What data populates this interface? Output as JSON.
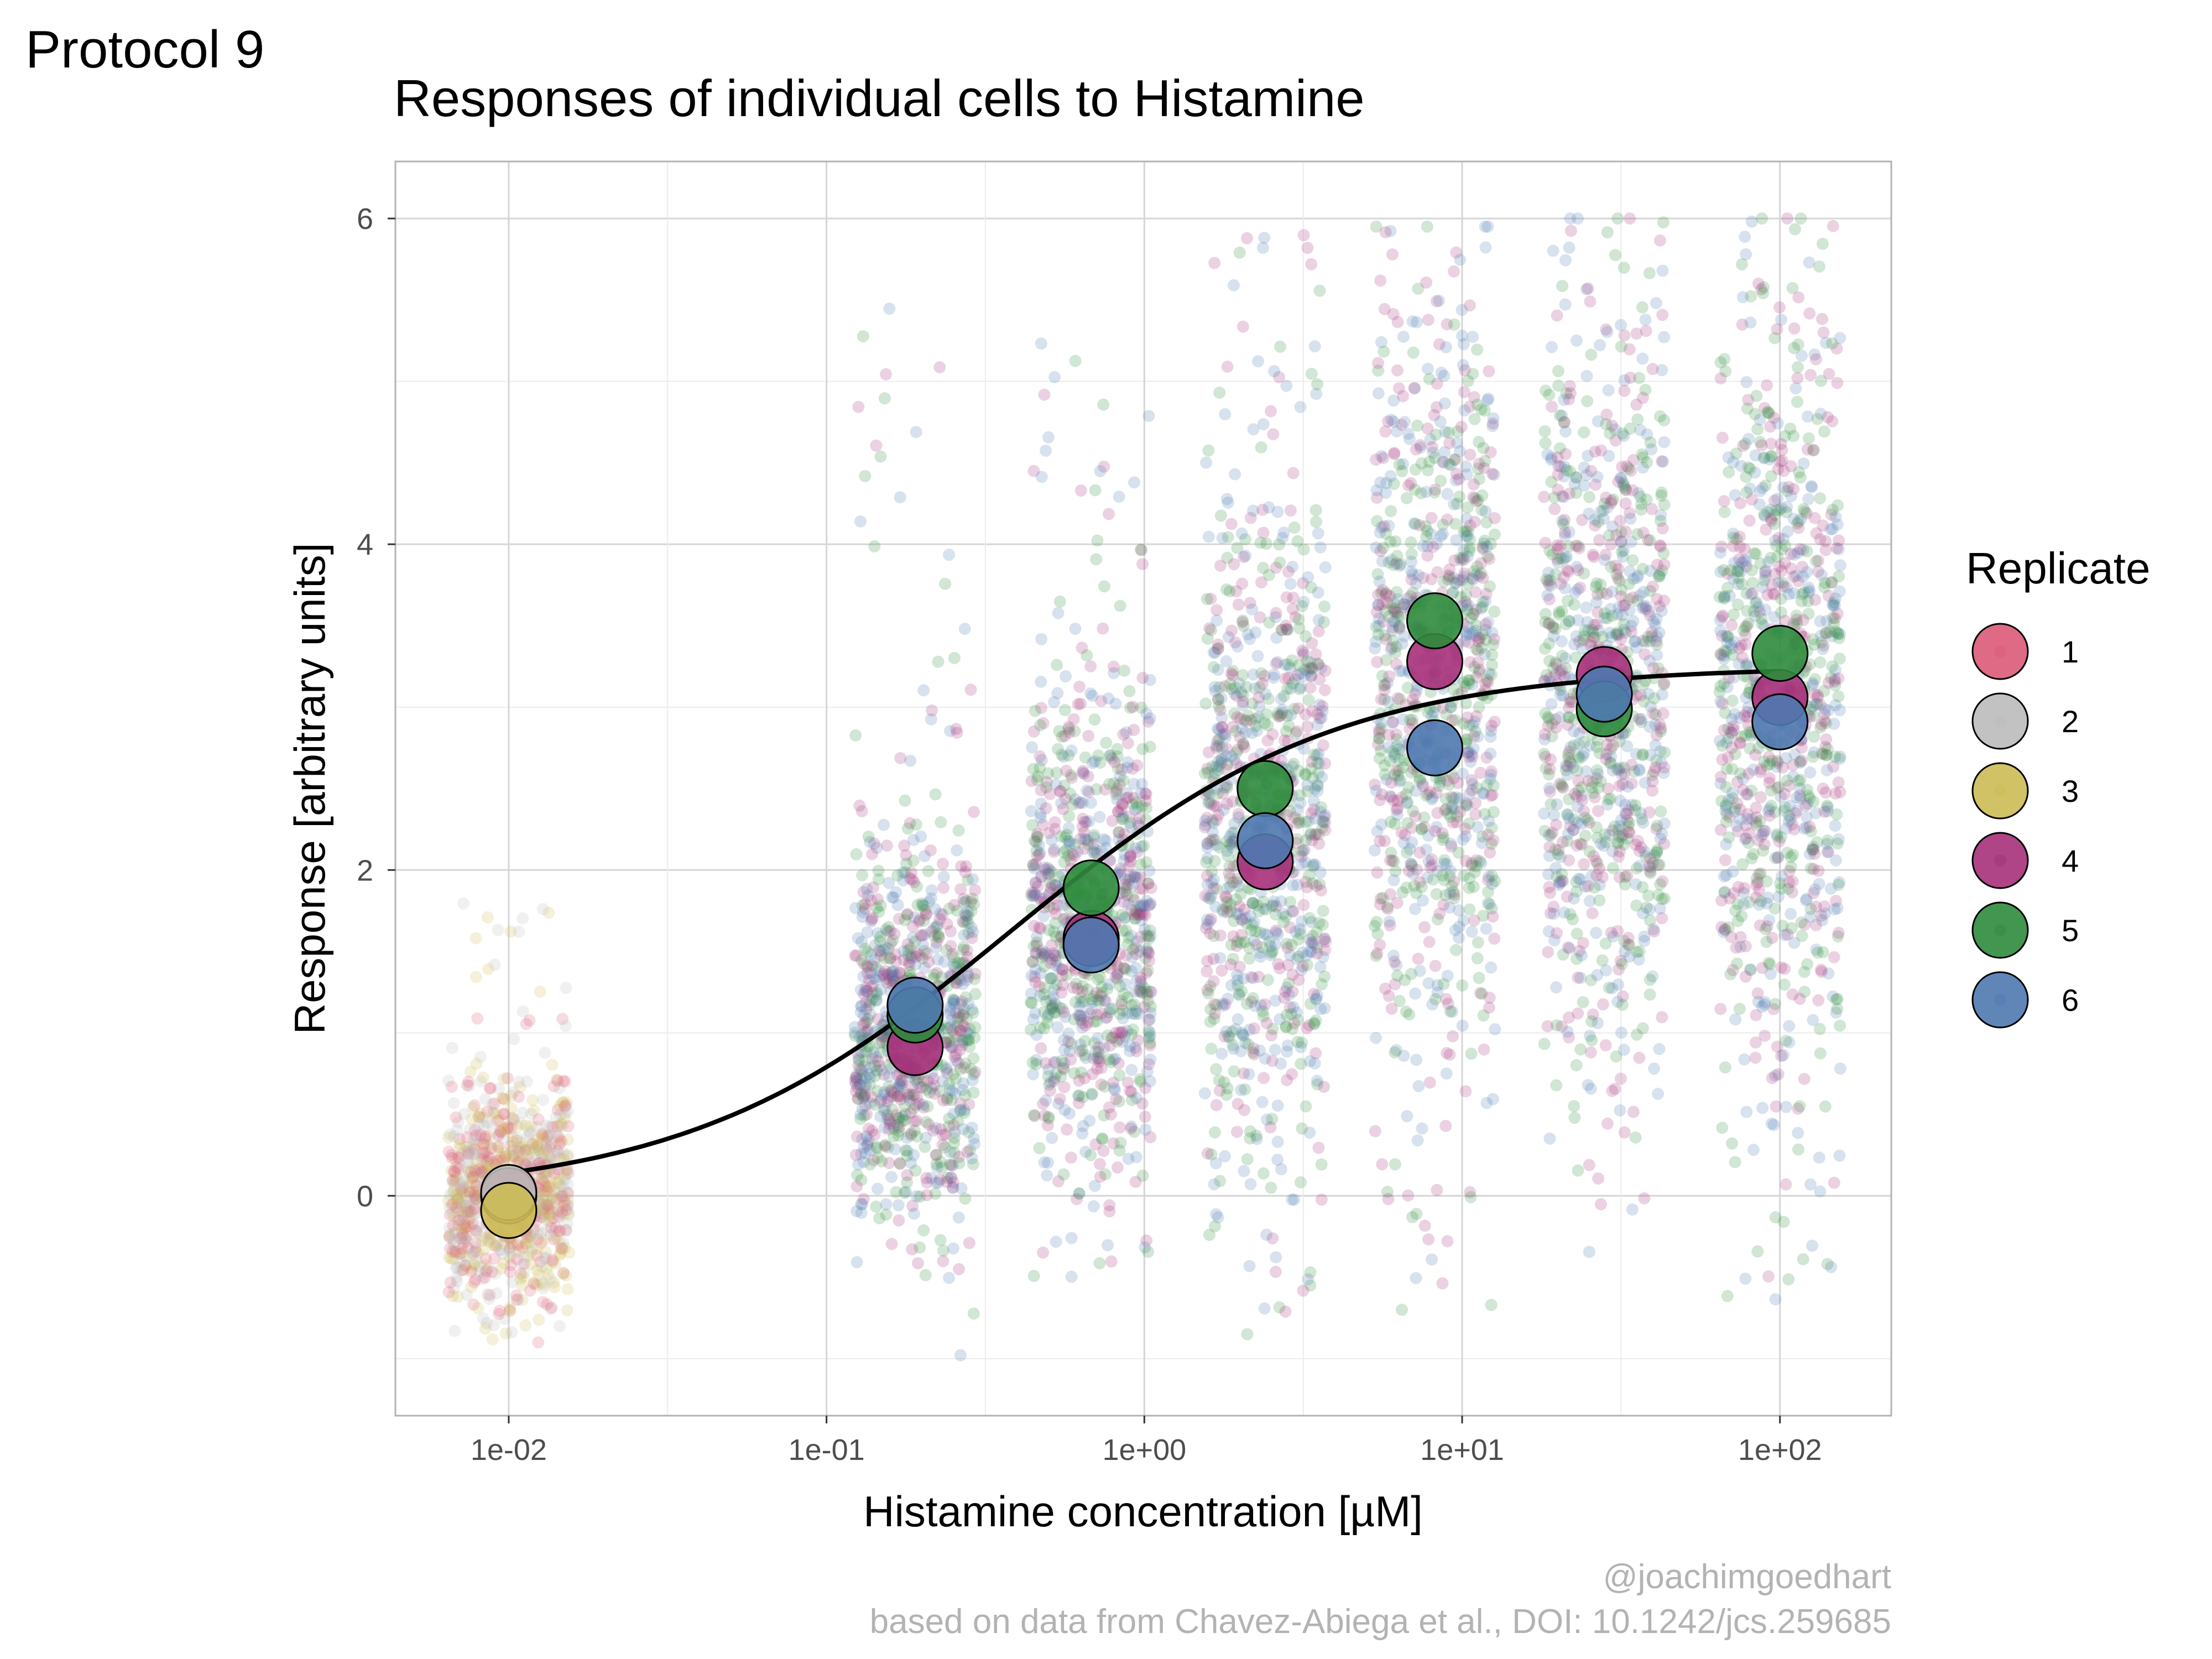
{
  "page": {
    "protocol_label": "Protocol 9",
    "caption_handle": "@joachimgoedhart",
    "caption_source": "based on data from Chavez-Abiega et al., DOI: 10.1242/jcs.259685"
  },
  "chart_data": {
    "type": "scatter",
    "title": "Responses of individual cells to Histamine",
    "xlabel": "Histamine concentration [µM]",
    "ylabel": "Response [arbitrary units]",
    "x_scale": "log10",
    "xlim": [
      0.0044,
      224
    ],
    "ylim": [
      -1.35,
      6.35
    ],
    "x_ticks": [
      {
        "value": 0.01,
        "label": "1e-02"
      },
      {
        "value": 0.1,
        "label": "1e-01"
      },
      {
        "value": 1,
        "label": "1e+00"
      },
      {
        "value": 10,
        "label": "1e+01"
      },
      {
        "value": 100,
        "label": "1e+02"
      }
    ],
    "y_ticks": [
      {
        "value": 0,
        "label": "0"
      },
      {
        "value": 2,
        "label": "2"
      },
      {
        "value": 4,
        "label": "4"
      },
      {
        "value": 6,
        "label": "6"
      }
    ],
    "grid": true,
    "legend": {
      "title": "Replicate",
      "position": "right",
      "entries": [
        {
          "label": "1",
          "color": "#DC5A78"
        },
        {
          "label": "2",
          "color": "#BBBBBB"
        },
        {
          "label": "3",
          "color": "#CCBB55"
        },
        {
          "label": "4",
          "color": "#A6307A"
        },
        {
          "label": "5",
          "color": "#2E8B3C"
        },
        {
          "label": "6",
          "color": "#4F79B0"
        }
      ]
    },
    "cell_clouds": [
      {
        "concentration": 0.01,
        "replicates": [
          "1",
          "2",
          "3"
        ],
        "center": 0.0,
        "spread": 0.32,
        "min": -0.9,
        "max": 1.82,
        "n": 900
      },
      {
        "concentration": 0.19,
        "replicates": [
          "4",
          "5",
          "6"
        ],
        "center": 1.0,
        "spread": 0.55,
        "min": -1.0,
        "max": 5.45,
        "n": 900
      },
      {
        "concentration": 0.68,
        "replicates": [
          "4",
          "5",
          "6"
        ],
        "center": 1.65,
        "spread": 0.75,
        "min": -0.55,
        "max": 5.25,
        "n": 900
      },
      {
        "concentration": 2.4,
        "replicates": [
          "4",
          "5",
          "6"
        ],
        "center": 2.2,
        "spread": 1.0,
        "min": -0.85,
        "max": 6.0,
        "n": 900
      },
      {
        "concentration": 8.2,
        "replicates": [
          "4",
          "5",
          "6"
        ],
        "center": 3.2,
        "spread": 1.1,
        "min": -0.7,
        "max": 5.95,
        "n": 900
      },
      {
        "concentration": 28,
        "replicates": [
          "4",
          "5",
          "6"
        ],
        "center": 3.1,
        "spread": 1.1,
        "min": -0.35,
        "max": 6.0,
        "n": 900
      },
      {
        "concentration": 100,
        "replicates": [
          "4",
          "5",
          "6"
        ],
        "center": 3.1,
        "spread": 1.1,
        "min": -0.65,
        "max": 6.0,
        "n": 900
      }
    ],
    "replicate_means": [
      {
        "concentration": 0.01,
        "replicate": "1",
        "response": 0.0
      },
      {
        "concentration": 0.01,
        "replicate": "2",
        "response": 0.02
      },
      {
        "concentration": 0.01,
        "replicate": "3",
        "response": -0.09
      },
      {
        "concentration": 0.19,
        "replicate": "4",
        "response": 0.91
      },
      {
        "concentration": 0.19,
        "replicate": "5",
        "response": 1.11
      },
      {
        "concentration": 0.19,
        "replicate": "6",
        "response": 1.17
      },
      {
        "concentration": 0.68,
        "replicate": "4",
        "response": 1.58
      },
      {
        "concentration": 0.68,
        "replicate": "5",
        "response": 1.89
      },
      {
        "concentration": 0.68,
        "replicate": "6",
        "response": 1.54
      },
      {
        "concentration": 2.4,
        "replicate": "4",
        "response": 2.05
      },
      {
        "concentration": 2.4,
        "replicate": "5",
        "response": 2.5
      },
      {
        "concentration": 2.4,
        "replicate": "6",
        "response": 2.18
      },
      {
        "concentration": 8.2,
        "replicate": "4",
        "response": 3.28
      },
      {
        "concentration": 8.2,
        "replicate": "5",
        "response": 3.53
      },
      {
        "concentration": 8.2,
        "replicate": "6",
        "response": 2.75
      },
      {
        "concentration": 28,
        "replicate": "4",
        "response": 3.2
      },
      {
        "concentration": 28,
        "replicate": "5",
        "response": 2.99
      },
      {
        "concentration": 28,
        "replicate": "6",
        "response": 3.08
      },
      {
        "concentration": 100,
        "replicate": "4",
        "response": 3.06
      },
      {
        "concentration": 100,
        "replicate": "5",
        "response": 3.33
      },
      {
        "concentration": 100,
        "replicate": "6",
        "response": 2.91
      }
    ],
    "fit_curve": {
      "model": "4-parameter logistic (log10 x)",
      "bottom": 0.0,
      "top": 3.25,
      "log10_ec50": -0.42,
      "hill": 0.85,
      "x_range": [
        0.01,
        100
      ]
    }
  }
}
